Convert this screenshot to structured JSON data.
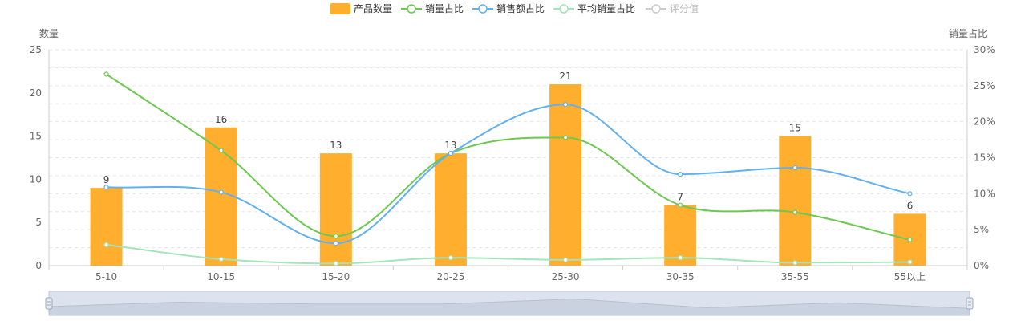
{
  "legend": [
    {
      "label": "产品数量",
      "kind": "bar",
      "color": "#FFAE2E",
      "enabled": true
    },
    {
      "label": "销量占比",
      "kind": "line",
      "color": "#6CC84E",
      "enabled": true
    },
    {
      "label": "销售额占比",
      "kind": "line",
      "color": "#62B0EF",
      "enabled": true
    },
    {
      "label": "平均销量占比",
      "kind": "line",
      "color": "#A3E4B8",
      "enabled": true
    },
    {
      "label": "评分值",
      "kind": "line",
      "color": "#CCCCCC",
      "enabled": false
    }
  ],
  "chart_data": {
    "type": "bar",
    "categories": [
      "5-10",
      "10-15",
      "15-20",
      "20-25",
      "25-30",
      "30-35",
      "35-55",
      "55以上"
    ],
    "left_axis": {
      "title": "数量",
      "ticks": [
        "0",
        "5",
        "10",
        "15",
        "20",
        "25"
      ],
      "min": 0,
      "max": 25
    },
    "right_axis": {
      "title": "销量占比",
      "ticks": [
        "0%",
        "5%",
        "10%",
        "15%",
        "20%",
        "25%",
        "30%"
      ],
      "min": 0,
      "max": 30
    },
    "grid": true,
    "legend_position": "top-center",
    "series": [
      {
        "name": "产品数量",
        "type": "bar",
        "axis": "left",
        "color": "#FFAE2E",
        "values": [
          9,
          16,
          13,
          13,
          21,
          7,
          15,
          6
        ],
        "labels": [
          "9",
          "16",
          "13",
          "13",
          "21",
          "7",
          "15",
          "6"
        ]
      },
      {
        "name": "销量占比",
        "type": "line",
        "axis": "right",
        "color": "#6CC84E",
        "values": [
          26.6,
          16.0,
          4.1,
          15.6,
          17.8,
          8.4,
          7.4,
          3.6
        ]
      },
      {
        "name": "销售额占比",
        "type": "line",
        "axis": "right",
        "color": "#62B0EF",
        "values": [
          10.9,
          10.2,
          3.1,
          15.6,
          22.4,
          12.7,
          13.6,
          10.0
        ]
      },
      {
        "name": "平均销量占比",
        "type": "line",
        "axis": "right",
        "color": "#A3E4B8",
        "values": [
          2.9,
          0.9,
          0.3,
          1.1,
          0.8,
          1.1,
          0.4,
          0.5
        ]
      }
    ]
  },
  "zoom_slider": {
    "start": 0,
    "end": 100,
    "fill": "#DCE3EE",
    "border": "#BCC7D6",
    "profile": [
      9,
      16,
      13,
      13,
      21,
      7,
      15,
      6
    ]
  }
}
